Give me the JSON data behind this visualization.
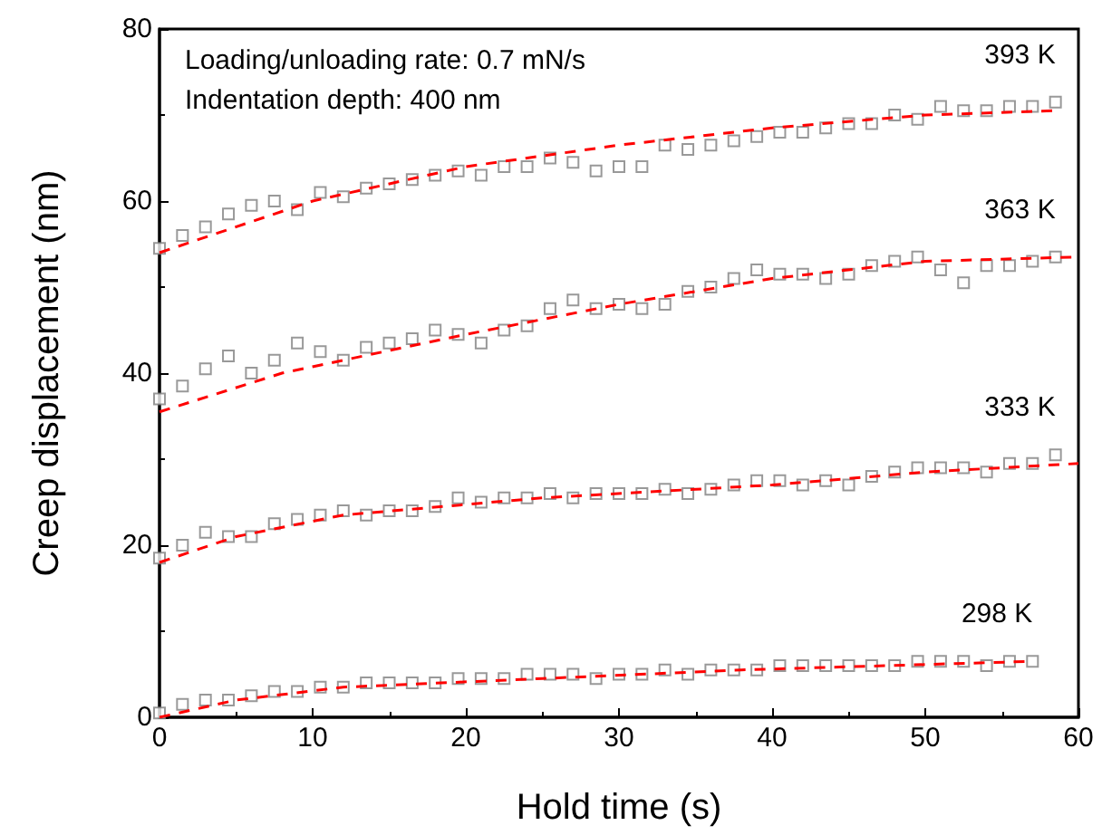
{
  "chart_data": {
    "type": "scatter",
    "xlabel": "Hold time (s)",
    "ylabel": "Creep displacement (nm)",
    "x": [
      0,
      1.5,
      3,
      4.5,
      6,
      7.5,
      9,
      10.5,
      12,
      13.5,
      15,
      16.5,
      18,
      19.5,
      21,
      22.5,
      24,
      25.5,
      27,
      28.5,
      30,
      31.5,
      33,
      34.5,
      36,
      37.5,
      39,
      40.5,
      42,
      43.5,
      45,
      46.5,
      48,
      49.5,
      51,
      52.5,
      54,
      55.5,
      57,
      58.5
    ],
    "series": [
      {
        "name": "393 K",
        "color": "#808080",
        "values": [
          54.5,
          56,
          57,
          58.5,
          59.5,
          60,
          59,
          61,
          60.5,
          61.5,
          62,
          62.5,
          63,
          63.5,
          63,
          64,
          64,
          65,
          64.5,
          63.5,
          64,
          64,
          66.5,
          66,
          66.5,
          67,
          67.5,
          68,
          68,
          68.5,
          69,
          69,
          70,
          69.5,
          71,
          70.5,
          70.5,
          71,
          71,
          71.5
        ]
      },
      {
        "name": "363 K",
        "color": "#808080",
        "values": [
          37,
          38.5,
          40.5,
          42,
          40,
          41.5,
          43.5,
          42.5,
          41.5,
          43,
          43.5,
          44,
          45,
          44.5,
          43.5,
          45,
          45.5,
          47.5,
          48.5,
          47.5,
          48,
          47.5,
          48,
          49.5,
          50,
          51,
          52,
          51.5,
          51.5,
          51,
          51.5,
          52.5,
          53,
          53.5,
          52,
          50.5,
          52.5,
          52.5,
          53,
          53.5
        ]
      },
      {
        "name": "333 K",
        "color": "#808080",
        "values": [
          18.5,
          20,
          21.5,
          21,
          21,
          22.5,
          23,
          23.5,
          24,
          23.5,
          24,
          24,
          24.5,
          25.5,
          25,
          25.5,
          25.5,
          26,
          25.5,
          26,
          26,
          26,
          26.5,
          26,
          26.5,
          27,
          27.5,
          27.5,
          27,
          27.5,
          27,
          28,
          28.5,
          29,
          29,
          29,
          28.5,
          29.5,
          29.5,
          30.5
        ]
      },
      {
        "name": "298 K",
        "color": "#808080",
        "values": [
          0.5,
          1.5,
          2,
          2,
          2.5,
          3,
          3,
          3.5,
          3.5,
          4,
          4,
          4,
          4,
          4.5,
          4.5,
          4.5,
          5,
          5,
          5,
          4.5,
          5,
          5,
          5.5,
          5,
          5.5,
          5.5,
          5.5,
          6,
          6,
          6,
          6,
          6,
          6,
          6.5,
          6.5,
          6.5,
          6,
          6.5,
          6.5,
          null
        ]
      },
      {
        "type": "line",
        "color": "#ff0000",
        "line_style": "dashed",
        "marker": "none",
        "x": [
          0,
          10,
          20,
          30,
          40,
          50,
          58.5
        ],
        "values": [
          54,
          60,
          64,
          66.5,
          68.5,
          70,
          70.5
        ]
      },
      {
        "type": "line",
        "color": "#ff0000",
        "line_style": "dashed",
        "marker": "none",
        "x": [
          0,
          8,
          20,
          30,
          40,
          50,
          60
        ],
        "values": [
          35.5,
          40,
          44.5,
          48,
          51,
          53,
          53.5
        ]
      },
      {
        "type": "line",
        "color": "#ff0000",
        "line_style": "dashed",
        "marker": "none",
        "x": [
          0,
          5,
          12,
          25,
          40,
          50,
          60
        ],
        "values": [
          18,
          21,
          23.5,
          25.5,
          27,
          28.5,
          29.5
        ]
      },
      {
        "type": "line",
        "color": "#ff0000",
        "line_style": "dashed",
        "marker": "none",
        "x": [
          0,
          5,
          12,
          25,
          38,
          57
        ],
        "values": [
          0,
          2,
          3.5,
          4.5,
          5.5,
          6.5
        ]
      }
    ],
    "marker": "square",
    "xlim": [
      0,
      60
    ],
    "xticks": [
      0,
      10,
      20,
      30,
      40,
      50,
      60
    ],
    "ylim": [
      0,
      80
    ],
    "yticks": [
      0,
      20,
      40,
      60,
      80
    ],
    "grid": false,
    "legend": false,
    "annotations": [
      "Loading/unloading rate: 0.7 mN/s",
      "Indentation depth: 400 nm"
    ]
  }
}
